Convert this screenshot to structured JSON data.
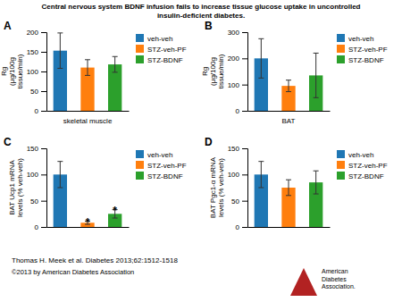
{
  "title": "Central nervous system BDNF infusion fails to increase tissue glucose uptake in uncontrolled\ninsulin-deficient diabetes.",
  "annotations": [
    {
      "text": "Thomas H. Meek et al. Diabetes 2013;62:1512-1518"
    },
    {
      "text": "©2013 by American Diabetes Association"
    },
    {
      "text": "American\nDiabetes\nAssociation.",
      "color": "#b22222"
    }
  ],
  "chart_data": [
    {
      "type": "bar",
      "title": "A",
      "xlabel": "skeletal muscle",
      "ylabel": "Rg\n(μg/100g\ntissue/min)",
      "categories": [
        null
      ],
      "series": [
        {
          "name": "veh-veh",
          "values": [
            153
          ],
          "errors": [
            45
          ]
        },
        {
          "name": "STZ-veh-PF",
          "values": [
            110
          ],
          "errors": [
            20
          ]
        },
        {
          "name": "STZ-BDNF",
          "values": [
            118
          ],
          "errors": [
            20
          ]
        }
      ],
      "ylim": [
        0,
        200
      ],
      "yticks": [
        0,
        50,
        100,
        150,
        200
      ],
      "grid": false,
      "legend": "right"
    },
    {
      "type": "bar",
      "title": "B",
      "xlabel": "BAT",
      "ylabel": "Rg\n(μg/100g\ntissue/min)",
      "categories": [
        null
      ],
      "series": [
        {
          "name": "veh-veh",
          "values": [
            200
          ],
          "errors": [
            75
          ]
        },
        {
          "name": "STZ-veh-PF",
          "values": [
            95
          ],
          "errors": [
            22
          ]
        },
        {
          "name": "STZ-BDNF",
          "values": [
            135
          ],
          "errors": [
            85
          ]
        }
      ],
      "ylim": [
        0,
        300
      ],
      "yticks": [
        0,
        100,
        200,
        300
      ],
      "grid": false,
      "legend": "right"
    },
    {
      "type": "bar",
      "title": "C",
      "ylabel": "BAT Ucp1 mRNA\nlevels (% veh-veh)",
      "categories": [
        null
      ],
      "series": [
        {
          "name": "veh-veh",
          "values": [
            100
          ],
          "errors": [
            25
          ]
        },
        {
          "name": "STZ-veh-PF",
          "values": [
            8
          ],
          "errors": [
            3
          ],
          "annotations": [
            "*"
          ]
        },
        {
          "name": "STZ-BDNF",
          "values": [
            25
          ],
          "errors": [
            8
          ],
          "annotations": [
            "*"
          ]
        }
      ],
      "ylim": [
        0,
        150
      ],
      "yticks": [
        0,
        50,
        100,
        150
      ],
      "grid": false,
      "legend": "right"
    },
    {
      "type": "bar",
      "title": "D",
      "ylabel": "BAT Pgc1-α mRNA\nlevels (% veh-veh)",
      "categories": [
        null
      ],
      "series": [
        {
          "name": "veh-veh",
          "values": [
            100
          ],
          "errors": [
            25
          ]
        },
        {
          "name": "STZ-veh-PF",
          "values": [
            75
          ],
          "errors": [
            15
          ]
        },
        {
          "name": "STZ-BDNF",
          "values": [
            85
          ],
          "errors": [
            22
          ]
        }
      ],
      "ylim": [
        0,
        150
      ],
      "yticks": [
        0,
        50,
        100,
        150
      ],
      "grid": false,
      "legend": "right"
    }
  ]
}
